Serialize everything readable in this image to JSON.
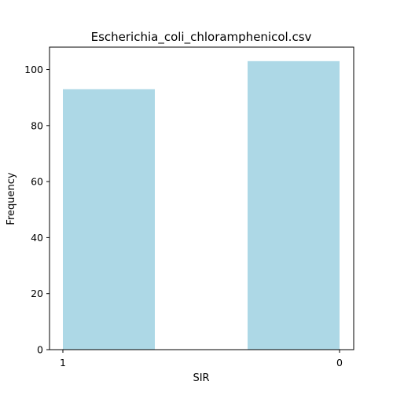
{
  "chart_data": {
    "type": "bar",
    "title": "Escherichia_coli_chloramphenicol.csv",
    "xlabel": "SIR",
    "ylabel": "Frequency",
    "categories": [
      "1",
      "0"
    ],
    "values": [
      93,
      103
    ],
    "ylim": [
      0,
      108
    ],
    "yticks": [
      0,
      20,
      40,
      60,
      80,
      100
    ],
    "xticks": [
      "1",
      "0"
    ],
    "bar_color": "#add8e6",
    "grid": false,
    "legend": "none"
  }
}
